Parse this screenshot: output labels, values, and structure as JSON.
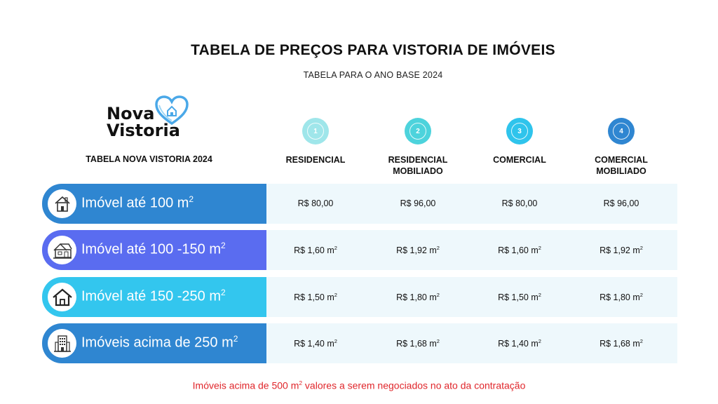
{
  "title": "TABELA DE PREÇOS PARA VISTORIA DE IMÓVEIS",
  "subtitle": "TABELA  PARA O ANO BASE 2024",
  "logo": {
    "line1": "Nova",
    "line2": "Vistoria"
  },
  "left_header": "TABELA NOVA VISTORIA 2024",
  "columns": [
    {
      "number": "1",
      "label_line1": "RESIDENCIAL",
      "label_line2": "",
      "color": "#9fe6ea"
    },
    {
      "number": "2",
      "label_line1": "RESIDENCIAL",
      "label_line2": "MOBILIADO",
      "color": "#4dd3dc"
    },
    {
      "number": "3",
      "label_line1": "COMERCIAL",
      "label_line2": "",
      "color": "#2fc4ec"
    },
    {
      "number": "4",
      "label_line1": "COMERCIAL",
      "label_line2": "MOBILIADO",
      "color": "#2f86d1"
    }
  ],
  "unit_sup": "2",
  "rows": [
    {
      "label": "Imóvel até 100 m",
      "icon": "house-icon",
      "color": "#2f86d1",
      "values": [
        "R$ 80,00",
        "R$ 96,00",
        "R$ 80,00",
        "R$ 96,00"
      ],
      "has_unit": false
    },
    {
      "label": "Imóvel até 100 -150 m",
      "icon": "house-large-icon",
      "color": "#5a6cf0",
      "values": [
        "R$ 1,60 m",
        "R$ 1,92 m",
        "R$ 1,60 m",
        "R$ 1,92 m"
      ],
      "has_unit": true
    },
    {
      "label": "Imóvel até 150 -250 m",
      "icon": "home-outline-icon",
      "color": "#33c6ee",
      "values": [
        "R$ 1,50 m",
        "R$ 1,80 m",
        "R$ 1,50 m",
        "R$ 1,80 m"
      ],
      "has_unit": true
    },
    {
      "label": "Imóveis acima de 250 m",
      "icon": "building-icon",
      "color": "#2f86d1",
      "values": [
        "R$ 1,40 m",
        "R$ 1,68 m",
        "R$ 1,40 m",
        "R$ 1,68 m"
      ],
      "has_unit": true
    }
  ],
  "note": {
    "before": "Imóveis acima de 500 m",
    "after": " valores a serem negociados no ato da contratação"
  }
}
